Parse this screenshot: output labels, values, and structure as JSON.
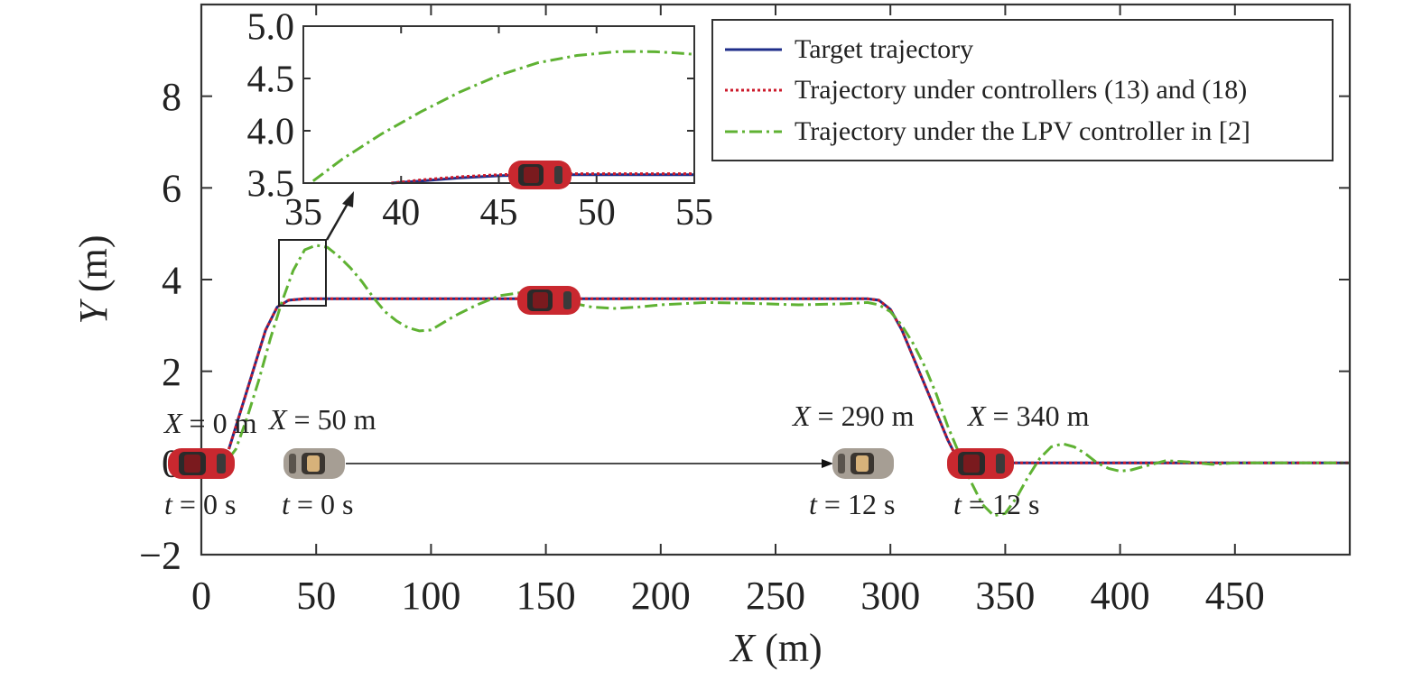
{
  "chart_data": [
    {
      "type": "line",
      "xlabel": {
        "sym": "X",
        "unit": " (m)"
      },
      "ylabel": {
        "sym": "Y",
        "unit": " (m)"
      },
      "xlim": [
        0,
        500
      ],
      "ylim": [
        -2,
        10
      ],
      "xticks": [
        0,
        50,
        100,
        150,
        200,
        250,
        300,
        350,
        400,
        450
      ],
      "yticks": [
        -2,
        0,
        2,
        4,
        6,
        8
      ],
      "xtick_labels": [
        "0",
        "50",
        "100",
        "150",
        "200",
        "250",
        "300",
        "350",
        "400",
        "450"
      ],
      "ytick_labels": [
        "−2",
        "0",
        "2",
        "4",
        "6",
        "8"
      ],
      "grid": false,
      "legend_position": "top-right",
      "series": [
        {
          "name": "Target trajectory",
          "color": "#1f2e8a",
          "style": "solid",
          "x": [
            12,
            20,
            28,
            33,
            38,
            45,
            100,
            200,
            290,
            295,
            300,
            305,
            310,
            315,
            320,
            325,
            327,
            330,
            350,
            400,
            500
          ],
          "y": [
            0.3,
            1.6,
            2.9,
            3.4,
            3.55,
            3.58,
            3.58,
            3.58,
            3.58,
            3.55,
            3.35,
            2.9,
            2.3,
            1.7,
            1.1,
            0.5,
            0.3,
            0.05,
            0.0,
            0.0,
            0.0
          ]
        },
        {
          "name": "Trajectory under controllers (13) and (18)",
          "color": "#cc1a2b",
          "style": "dotted",
          "x": [
            12,
            20,
            28,
            33,
            38,
            45,
            100,
            200,
            290,
            295,
            300,
            305,
            310,
            315,
            320,
            325,
            327,
            330,
            350,
            400,
            500
          ],
          "y": [
            0.3,
            1.6,
            2.9,
            3.4,
            3.55,
            3.58,
            3.58,
            3.58,
            3.58,
            3.55,
            3.35,
            2.9,
            2.3,
            1.7,
            1.1,
            0.5,
            0.3,
            0.05,
            0.0,
            0.0,
            0.0
          ]
        },
        {
          "name": "Trajectory under the LPV controller in [2]",
          "color": "#5fb233",
          "style": "dashdot",
          "x": [
            12,
            15,
            20,
            25,
            30,
            35,
            40,
            45,
            50,
            55,
            60,
            65,
            70,
            75,
            80,
            85,
            90,
            95,
            100,
            105,
            110,
            120,
            130,
            140,
            150,
            160,
            170,
            180,
            190,
            200,
            220,
            240,
            260,
            280,
            290,
            295,
            300,
            305,
            310,
            315,
            320,
            325,
            330,
            335,
            340,
            345,
            350,
            355,
            360,
            365,
            370,
            375,
            380,
            385,
            390,
            395,
            400,
            405,
            410,
            420,
            430,
            440,
            450,
            500
          ],
          "y": [
            0.1,
            0.3,
            1.0,
            1.8,
            2.7,
            3.5,
            4.2,
            4.65,
            4.75,
            4.7,
            4.5,
            4.25,
            3.95,
            3.6,
            3.3,
            3.1,
            2.95,
            2.88,
            2.9,
            3.05,
            3.2,
            3.45,
            3.65,
            3.72,
            3.65,
            3.5,
            3.4,
            3.37,
            3.4,
            3.45,
            3.5,
            3.48,
            3.45,
            3.47,
            3.5,
            3.45,
            3.3,
            3.0,
            2.6,
            2.1,
            1.5,
            0.8,
            0.2,
            -0.4,
            -0.9,
            -1.15,
            -1.1,
            -0.75,
            -0.3,
            0.1,
            0.35,
            0.42,
            0.35,
            0.2,
            0.0,
            -0.12,
            -0.18,
            -0.15,
            -0.08,
            0.05,
            0.02,
            -0.03,
            0.0,
            0.0
          ]
        }
      ]
    },
    {
      "type": "line",
      "xlim": [
        35,
        55
      ],
      "ylim": [
        3.5,
        5.0
      ],
      "xticks": [
        35,
        40,
        45,
        50,
        55
      ],
      "yticks": [
        3.5,
        4.0,
        4.5,
        5.0
      ],
      "xtick_labels": [
        "35",
        "40",
        "45",
        "50",
        "55"
      ],
      "ytick_labels": [
        "3.5",
        "4.0",
        "4.5",
        "5.0"
      ],
      "grid": false,
      "series": [
        {
          "color": "#1f2e8a",
          "style": "solid",
          "x": [
            39.5,
            41,
            43,
            45,
            47,
            50,
            55
          ],
          "y": [
            3.5,
            3.52,
            3.55,
            3.57,
            3.58,
            3.58,
            3.58
          ]
        },
        {
          "color": "#cc1a2b",
          "style": "dotted",
          "x": [
            39.5,
            41,
            43,
            45,
            47,
            50,
            55
          ],
          "y": [
            3.5,
            3.53,
            3.56,
            3.58,
            3.59,
            3.59,
            3.59
          ]
        },
        {
          "color": "#5fb233",
          "style": "dashdot",
          "x": [
            35.5,
            37,
            39,
            41,
            43,
            45,
            47,
            49,
            51,
            52,
            53,
            54,
            55
          ],
          "y": [
            3.52,
            3.73,
            3.97,
            4.18,
            4.37,
            4.53,
            4.65,
            4.72,
            4.755,
            4.758,
            4.755,
            4.745,
            4.73
          ]
        }
      ]
    }
  ],
  "annotations": {
    "labels": [
      {
        "id": "start-red",
        "sym": "X",
        "rest": " = 0 m"
      },
      {
        "id": "start-gray",
        "sym": "X",
        "rest": " = 50 m"
      },
      {
        "id": "end-gray",
        "sym": "X",
        "rest": " = 290 m"
      },
      {
        "id": "end-red",
        "sym": "X",
        "rest": " = 340 m"
      },
      {
        "id": "t-start-red",
        "sym": "t",
        "rest": " = 0 s"
      },
      {
        "id": "t-start-gray",
        "sym": "t",
        "rest": " = 0 s"
      },
      {
        "id": "t-end-gray",
        "sym": "t",
        "rest": " = 12 s"
      },
      {
        "id": "t-end-red",
        "sym": "t",
        "rest": " = 12 s"
      }
    ],
    "car_colors": {
      "red": "#c9282f",
      "gray": "#a69e94"
    }
  }
}
